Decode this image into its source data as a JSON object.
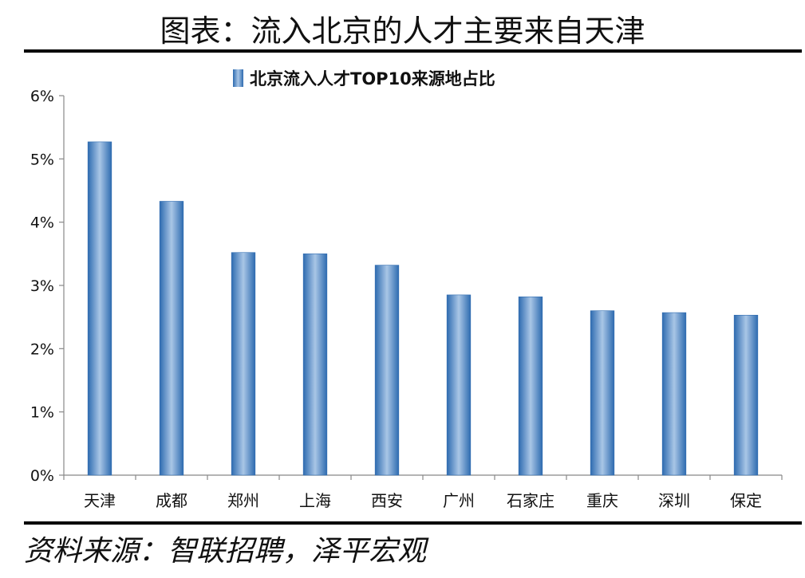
{
  "figure": {
    "title": "图表：流入北京的人才主要来自天津",
    "source": "资料来源：智联招聘，泽平宏观"
  },
  "chart_data": {
    "type": "bar",
    "legend": {
      "label": "北京流入人才TOP10来源地占比",
      "position": "top"
    },
    "categories": [
      "天津",
      "成都",
      "郑州",
      "上海",
      "西安",
      "广州",
      "石家庄",
      "重庆",
      "深圳",
      "保定"
    ],
    "series": [
      {
        "name": "北京流入人才TOP10来源地占比",
        "values": [
          5.27,
          4.33,
          3.52,
          3.5,
          3.32,
          2.85,
          2.82,
          2.6,
          2.57,
          2.53
        ]
      }
    ],
    "ylim": [
      0,
      6
    ],
    "yticks": [
      "0%",
      "1%",
      "2%",
      "3%",
      "4%",
      "5%",
      "6%"
    ],
    "grid": false,
    "colors": {
      "bar_edge": "#2E6BB0",
      "bar_center": "#A9C6E6"
    }
  }
}
